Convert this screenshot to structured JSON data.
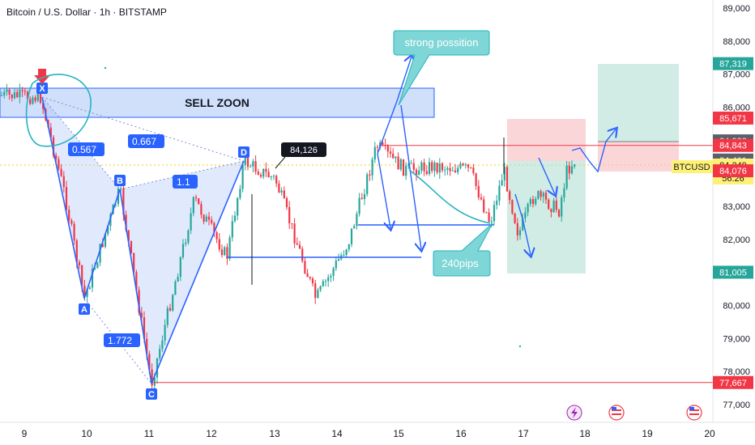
{
  "header": {
    "title": "Bitcoin / U.S. Dollar · 1h · BITSTAMP"
  },
  "chart_data": {
    "type": "candlestick",
    "symbol": "BTCUSD",
    "interval": "1h",
    "x_ticks": [
      "9",
      "10",
      "11",
      "12",
      "13",
      "14",
      "15",
      "16",
      "17",
      "18",
      "19",
      "20"
    ],
    "y_ticks": [
      "77,000",
      "78,000",
      "79,000",
      "80,000",
      "81,000",
      "82,000",
      "83,000",
      "84,000",
      "85,000",
      "86,000",
      "87,000",
      "88,000",
      "89,000"
    ],
    "ylim": [
      76700,
      89200
    ],
    "price_badges": [
      {
        "label": "87,319",
        "value": 87319,
        "bg": "#26a69a",
        "fg": "#ffffff"
      },
      {
        "label": "85,671",
        "value": 85671,
        "bg": "#f23645",
        "fg": "#ffffff"
      },
      {
        "label": "84,982",
        "value": 84982,
        "bg": "#5d606b",
        "fg": "#ffffff"
      },
      {
        "label": "84,843",
        "value": 84843,
        "bg": "#f23645",
        "fg": "#ffffff"
      },
      {
        "label": "84,401",
        "value": 84401,
        "bg": "#5d606b",
        "fg": "#ffffff"
      },
      {
        "label": "84,249",
        "value": 84249,
        "bg": "#fff176",
        "fg": "#131722"
      },
      {
        "label": "56:26",
        "value": 84000,
        "bg": "#fff176",
        "fg": "#131722"
      },
      {
        "label": "84,076",
        "value": 84076,
        "bg": "#f23645",
        "fg": "#ffffff"
      },
      {
        "label": "81,005",
        "value": 81005,
        "bg": "#26a69a",
        "fg": "#ffffff"
      },
      {
        "label": "77,667",
        "value": 77667,
        "bg": "#f23645",
        "fg": "#ffffff"
      }
    ],
    "symbol_tag": "BTCUSD",
    "last_price": 84249,
    "horizontal_lines": [
      {
        "value": 84843,
        "color": "#f23645"
      },
      {
        "value": 77667,
        "color": "#f23645"
      }
    ],
    "harmonic_points": [
      {
        "label": "X",
        "value": 85900
      },
      {
        "label": "A",
        "value": 80100
      },
      {
        "label": "B",
        "value": 83600
      },
      {
        "label": "C",
        "value": 77700
      },
      {
        "label": "D",
        "value": 84000
      }
    ],
    "ratio_labels": [
      "0.567",
      "0.667",
      "1.1",
      "1.772"
    ],
    "annotations": {
      "sell_zone": "SELL ZOON",
      "callout_top": "strong possition",
      "callout_bottom": "240pips",
      "price_label": "84,126"
    },
    "colors": {
      "up": "#26a69a",
      "down": "#f23645",
      "drawing": "#2962ff",
      "callout": "#7fd6d6",
      "sell_zone": "#aac4f5"
    }
  }
}
